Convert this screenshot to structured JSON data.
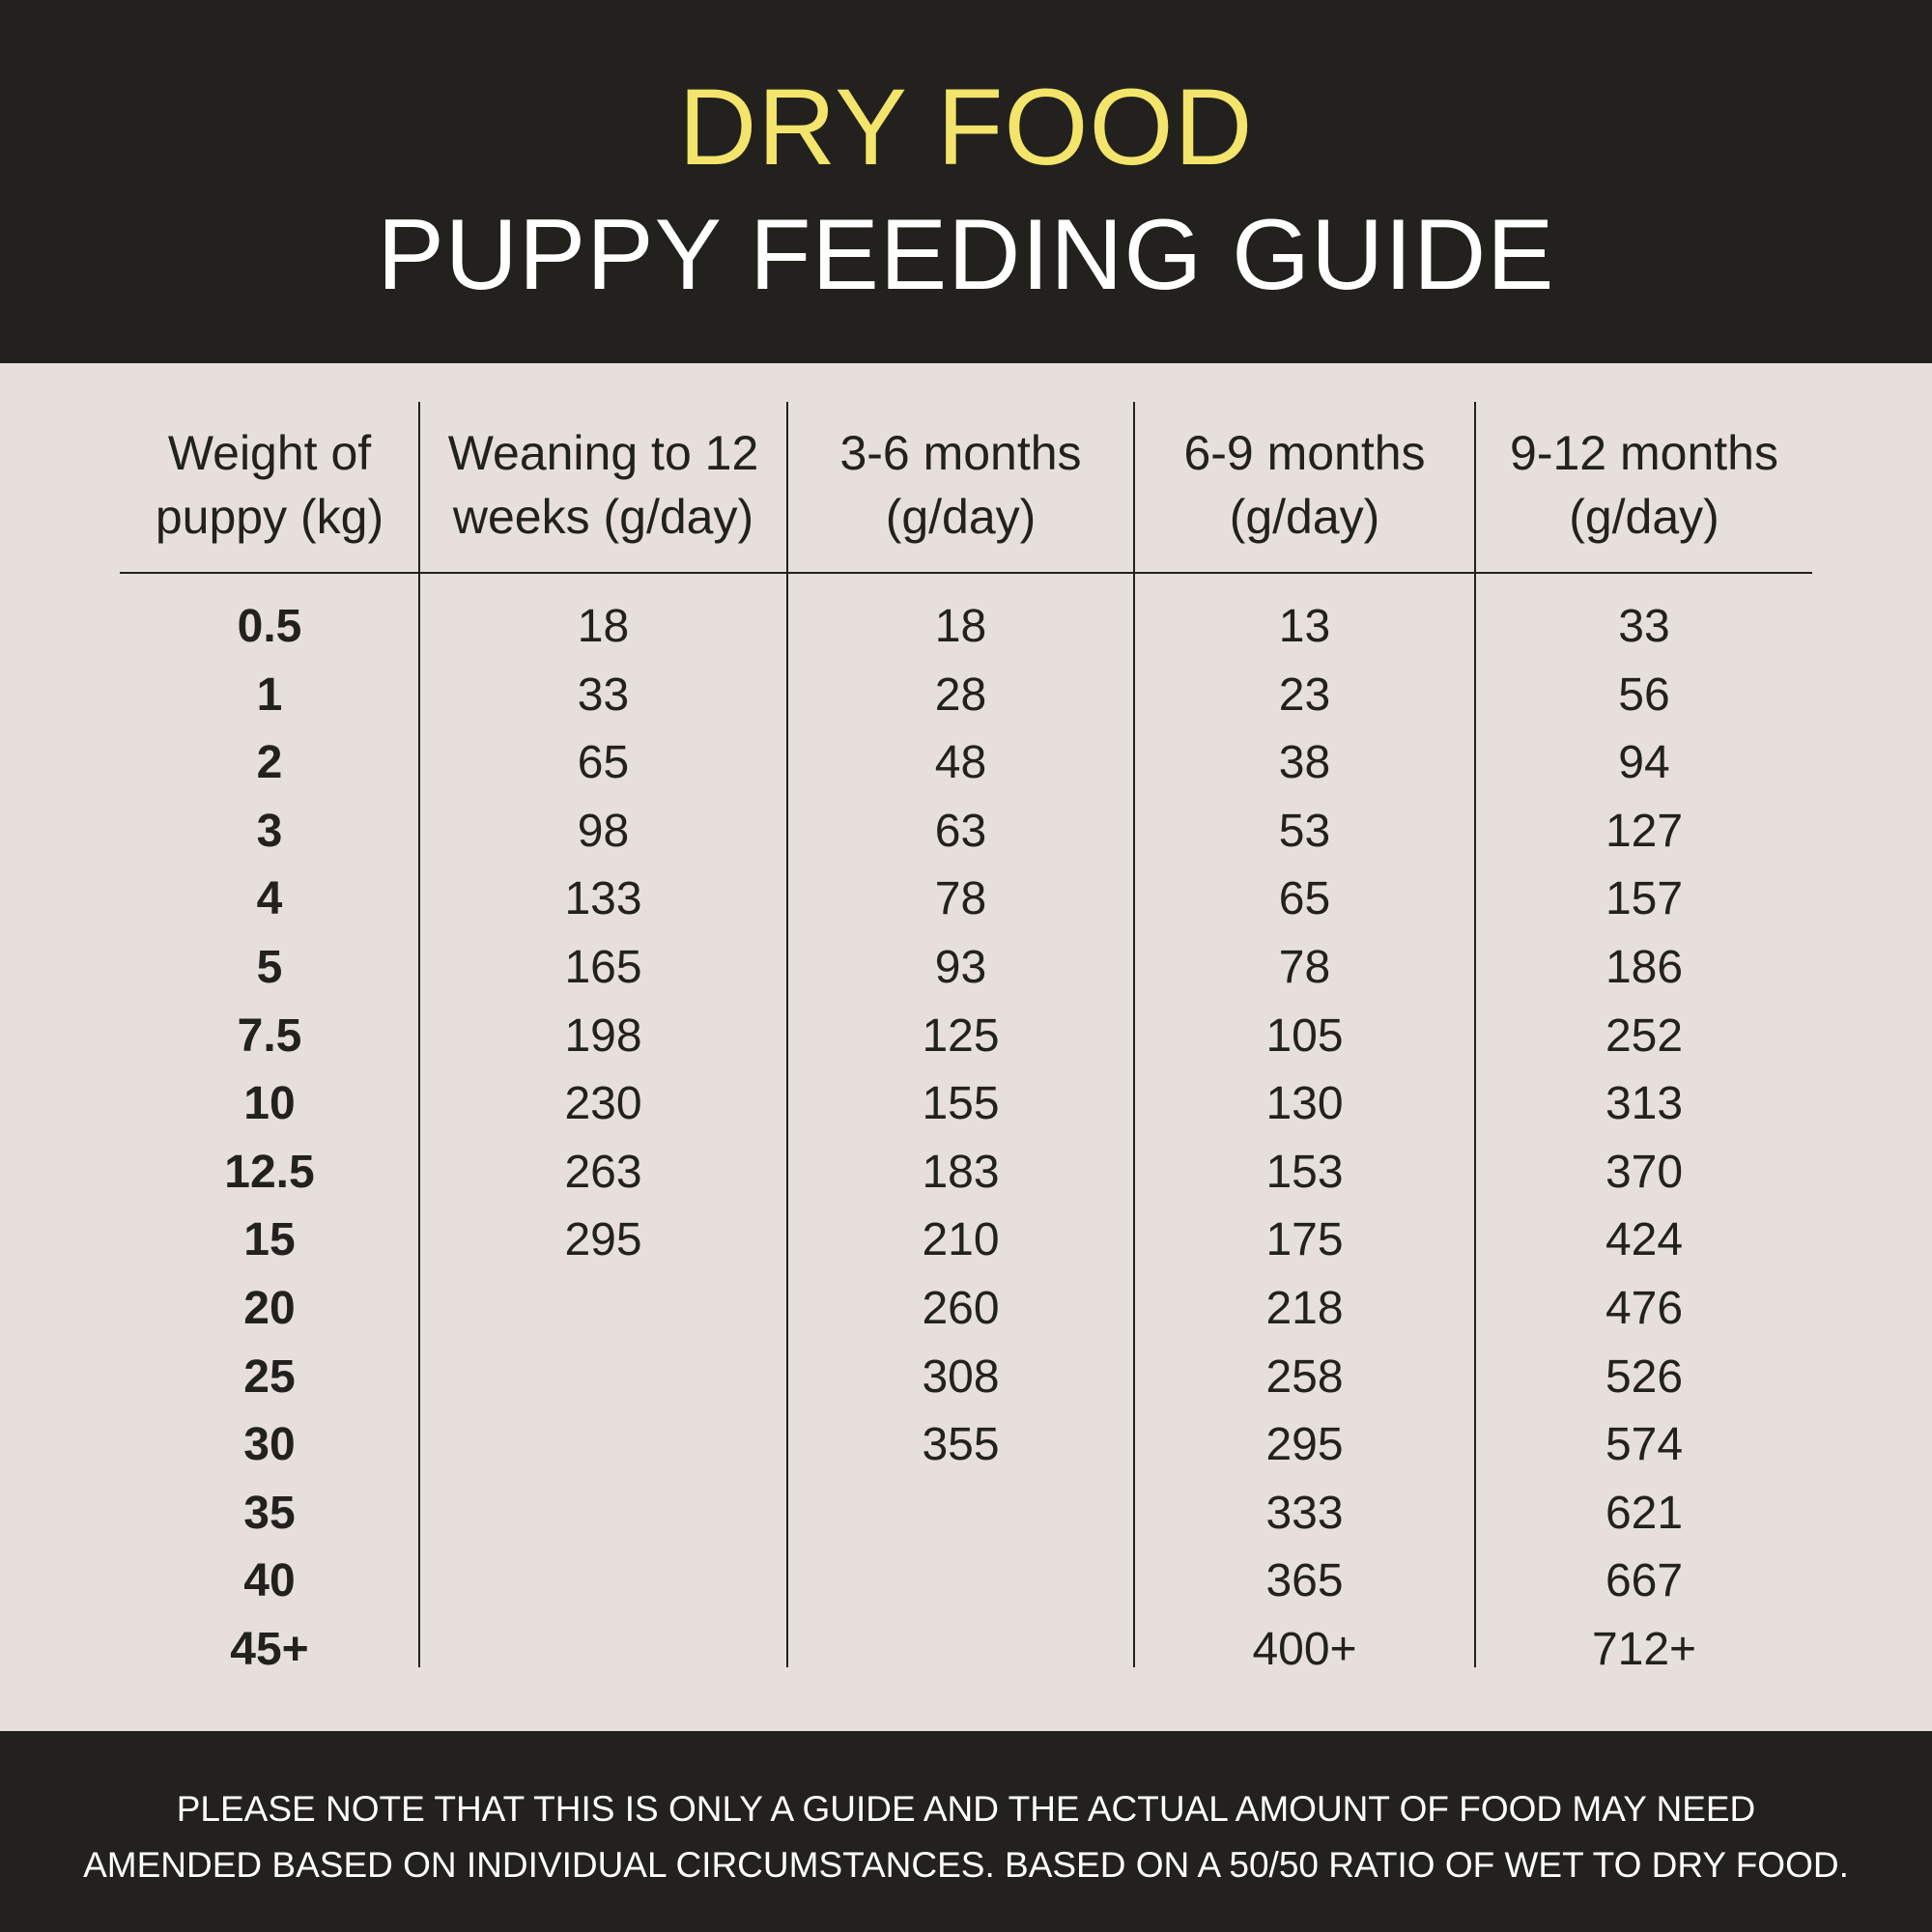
{
  "header": {
    "title": "DRY FOOD",
    "subtitle": "PUPPY FEEDING GUIDE"
  },
  "colors": {
    "header_bg": "#22211e",
    "title_accent": "#f3e46b",
    "table_bg": "#e6dfdc"
  },
  "table": {
    "columns": [
      {
        "line1": "Weight of",
        "line2": "puppy (kg)"
      },
      {
        "line1": "Weaning to 12",
        "line2": "weeks (g/day)"
      },
      {
        "line1": "3-6 months",
        "line2": "(g/day)"
      },
      {
        "line1": "6-9 months",
        "line2": "(g/day)"
      },
      {
        "line1": "9-12 months",
        "line2": "(g/day)"
      }
    ],
    "weights": [
      "0.5",
      "1",
      "2",
      "3",
      "4",
      "5",
      "7.5",
      "10",
      "12.5",
      "15",
      "20",
      "25",
      "30",
      "35",
      "40",
      "45+"
    ],
    "weaning_to_12_weeks": [
      "18",
      "33",
      "65",
      "98",
      "133",
      "165",
      "198",
      "230",
      "263",
      "295",
      "",
      "",
      "",
      "",
      "",
      ""
    ],
    "months_3_6": [
      "18",
      "28",
      "48",
      "63",
      "78",
      "93",
      "125",
      "155",
      "183",
      "210",
      "260",
      "308",
      "355",
      "",
      "",
      ""
    ],
    "months_6_9": [
      "13",
      "23",
      "38",
      "53",
      "65",
      "78",
      "105",
      "130",
      "153",
      "175",
      "218",
      "258",
      "295",
      "333",
      "365",
      "400+"
    ],
    "months_9_12": [
      "33",
      "56",
      "94",
      "127",
      "157",
      "186",
      "252",
      "313",
      "370",
      "424",
      "476",
      "526",
      "574",
      "621",
      "667",
      "712+"
    ]
  },
  "footer": {
    "line1": "PLEASE NOTE THAT THIS IS ONLY A GUIDE AND THE ACTUAL AMOUNT OF FOOD MAY NEED",
    "line2": "AMENDED BASED ON INDIVIDUAL CIRCUMSTANCES. BASED ON A 50/50 RATIO OF WET TO DRY FOOD."
  }
}
